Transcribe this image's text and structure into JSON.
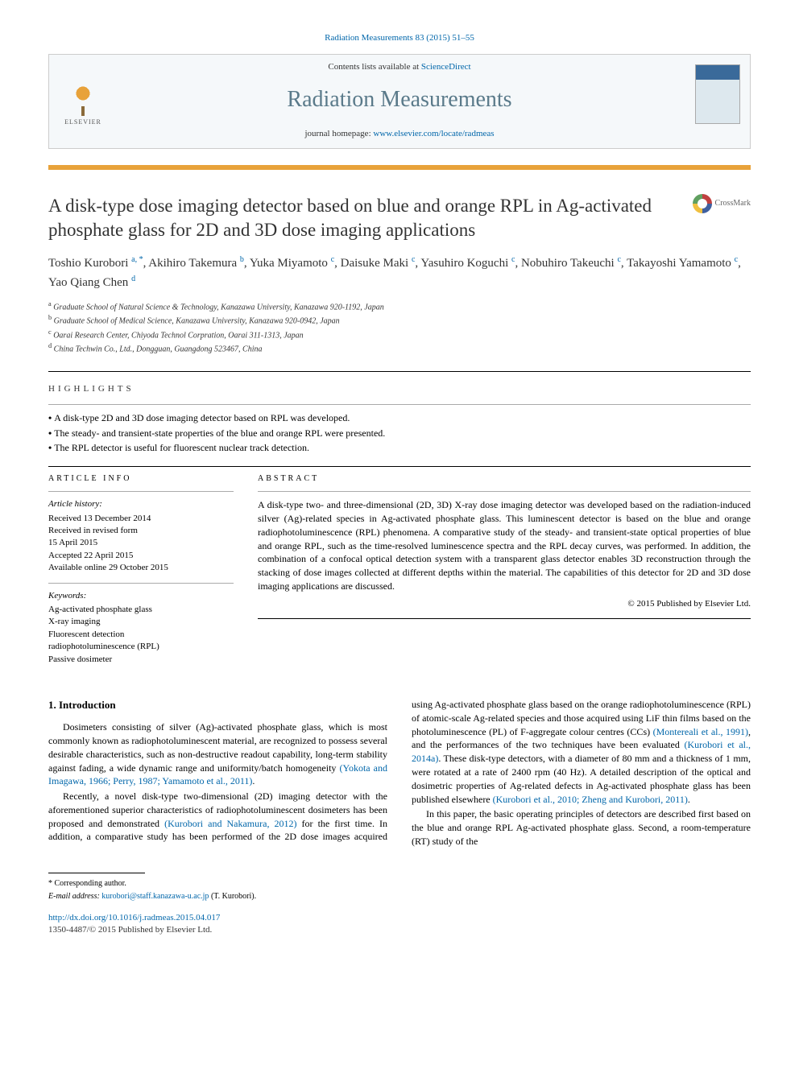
{
  "citation": "Radiation Measurements 83 (2015) 51–55",
  "header": {
    "contents_prefix": "Contents lists available at ",
    "contents_link": "ScienceDirect",
    "journal_name": "Radiation Measurements",
    "homepage_prefix": "journal homepage: ",
    "homepage_url": "www.elsevier.com/locate/radmeas",
    "publisher_label": "ELSEVIER"
  },
  "crossmark_label": "CrossMark",
  "title": "A disk-type dose imaging detector based on blue and orange RPL in Ag-activated phosphate glass for 2D and 3D dose imaging applications",
  "authors_html": "Toshio Kurobori <sup>a, *</sup>, Akihiro Takemura <sup>b</sup>, Yuka Miyamoto <sup>c</sup>, Daisuke Maki <sup>c</sup>, Yasuhiro Koguchi <sup>c</sup>, Nobuhiro Takeuchi <sup>c</sup>, Takayoshi Yamamoto <sup>c</sup>, Yao Qiang Chen <sup>d</sup>",
  "affiliations": [
    "a Graduate School of Natural Science & Technology, Kanazawa University, Kanazawa 920-1192, Japan",
    "b Graduate School of Medical Science, Kanazawa University, Kanazawa 920-0942, Japan",
    "c Oarai Research Center, Chiyoda Technol Corpration, Oarai 311-1313, Japan",
    "d China Techwin Co., Ltd., Dongguan, Guangdong 523467, China"
  ],
  "highlights_label": "highlights",
  "highlights": [
    "A disk-type 2D and 3D dose imaging detector based on RPL was developed.",
    "The steady- and transient-state properties of the blue and orange RPL were presented.",
    "The RPL detector is useful for fluorescent nuclear track detection."
  ],
  "article_info_label": "article info",
  "abstract_label": "abstract",
  "history_label": "Article history:",
  "history": [
    "Received 13 December 2014",
    "Received in revised form",
    "15 April 2015",
    "Accepted 22 April 2015",
    "Available online 29 October 2015"
  ],
  "keywords_label": "Keywords:",
  "keywords": [
    "Ag-activated phosphate glass",
    "X-ray imaging",
    "Fluorescent detection",
    "radiophotoluminescence (RPL)",
    "Passive dosimeter"
  ],
  "abstract": "A disk-type two- and three-dimensional (2D, 3D) X-ray dose imaging detector was developed based on the radiation-induced silver (Ag)-related species in Ag-activated phosphate glass. This luminescent detector is based on the blue and orange radiophotoluminescence (RPL) phenomena. A comparative study of the steady- and transient-state optical properties of blue and orange RPL, such as the time-resolved luminescence spectra and the RPL decay curves, was performed. In addition, the combination of a confocal optical detection system with a transparent glass detector enables 3D reconstruction through the stacking of dose images collected at different depths within the material. The capabilities of this detector for 2D and 3D dose imaging applications are discussed.",
  "copyright": "© 2015 Published by Elsevier Ltd.",
  "intro_heading": "1. Introduction",
  "intro_p1": "Dosimeters consisting of silver (Ag)-activated phosphate glass, which is most commonly known as radiophotoluminescent material, are recognized to possess several desirable characteristics, such as non-destructive readout capability, long-term stability against fading, a wide dynamic range and uniformity/batch homogeneity",
  "intro_ref1": "(Yokota and Imagawa, 1966; Perry, 1987; Yamamoto et al., 2011)",
  "intro_p2a": "Recently, a novel disk-type two-dimensional (2D) imaging detector with the aforementioned superior characteristics of radiophotoluminescent dosimeters has been proposed and demonstrated ",
  "intro_ref2": "(Kurobori and Nakamura, 2012)",
  "intro_p2b": " for the first time. In addition, a comparative study has been performed of the 2D dose images acquired using Ag-activated phosphate glass based on the orange radiophotoluminescence (RPL) of atomic-scale Ag-related species and those acquired using LiF thin films based on the photoluminescence (PL) of F-aggregate colour centres (CCs) ",
  "intro_ref3": "(Montereali et al., 1991)",
  "intro_p2c": ", and the performances of the two techniques have been evaluated ",
  "intro_ref4": "(Kurobori et al., 2014a)",
  "intro_p2d": ". These disk-type detectors, with a diameter of 80 mm and a thickness of 1 mm, were rotated at a rate of 2400 rpm (40 Hz). A detailed description of the optical and dosimetric properties of Ag-related defects in Ag-activated phosphate glass has been published elsewhere ",
  "intro_ref5": "(Kurobori et al., 2010; Zheng and Kurobori, 2011)",
  "intro_p3": "In this paper, the basic operating principles of detectors are described first based on the blue and orange RPL Ag-activated phosphate glass. Second, a room-temperature (RT) study of the",
  "footer": {
    "corresponding": "* Corresponding author.",
    "email_label": "E-mail address: ",
    "email": "kurobori@staff.kanazawa-u.ac.jp",
    "email_suffix": " (T. Kurobori).",
    "doi": "http://dx.doi.org/10.1016/j.radmeas.2015.04.017",
    "issn": "1350-4487/© 2015 Published by Elsevier Ltd."
  },
  "colors": {
    "link": "#0066aa",
    "accent_orange": "#e8a23a",
    "header_bg": "#f5f8fa",
    "journal_color": "#5a7a8a"
  }
}
